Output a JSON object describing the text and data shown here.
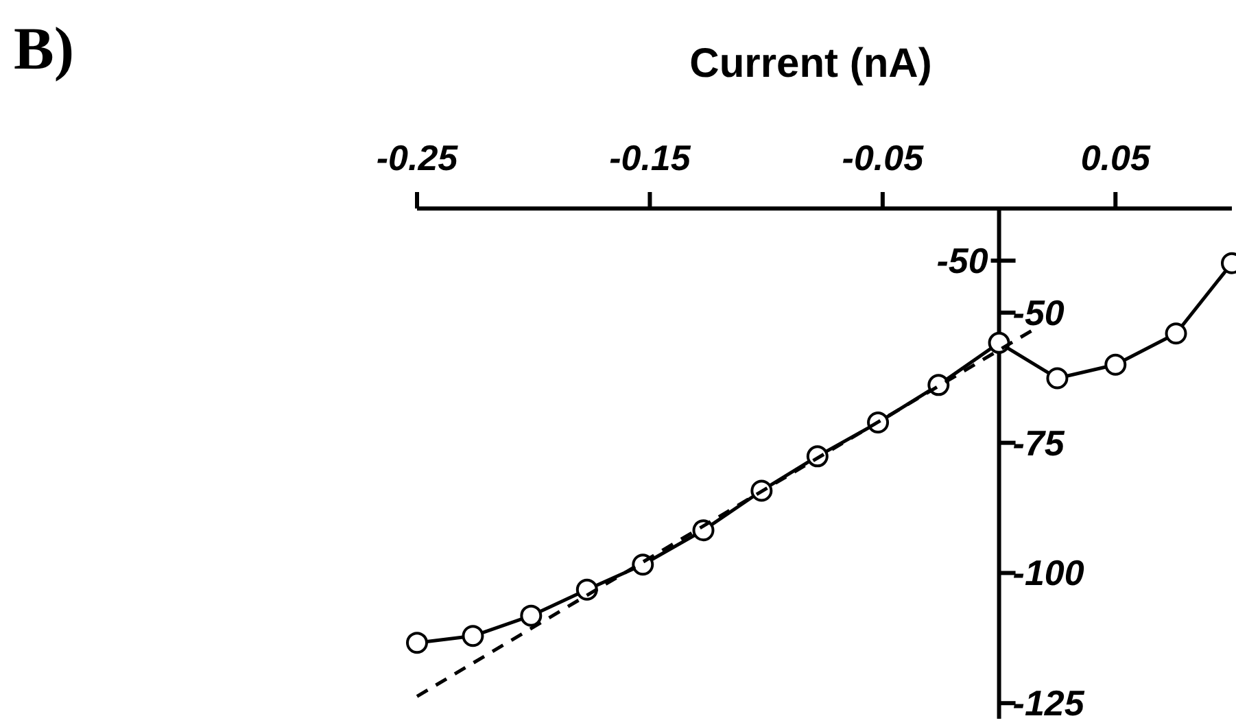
{
  "chart_data": {
    "type": "line",
    "xlabel": "Current (nA)",
    "annotations": [
      "B)",
      "-50"
    ],
    "xlim": [
      -0.25,
      0.1
    ],
    "xticks": [
      -0.25,
      -0.15,
      -0.05,
      0.05
    ],
    "ylim": [
      -128,
      -30
    ],
    "yticks": [
      -50,
      -75,
      -100,
      -125
    ],
    "series": [
      {
        "color": "#000000",
        "marker": "circle",
        "line_style": "solid",
        "x": [
          -0.25,
          -0.226,
          -0.201,
          -0.177,
          -0.153,
          -0.127,
          -0.102,
          -0.078,
          -0.052,
          -0.026,
          0,
          0.025,
          0.05,
          0.076,
          0.1
        ],
        "values": [
          -113.4,
          -112.1,
          -108.2,
          -103.2,
          -98.4,
          -91.8,
          -84.2,
          -77.6,
          -71.1,
          -63.9,
          -55.8,
          -62.6,
          -60,
          -54,
          -40.5
        ]
      },
      {
        "color": "#000000",
        "marker": "none",
        "line_style": "dashed",
        "x": [
          -0.25,
          0.015
        ],
        "values": [
          -123.7,
          -53.2
        ]
      }
    ]
  }
}
